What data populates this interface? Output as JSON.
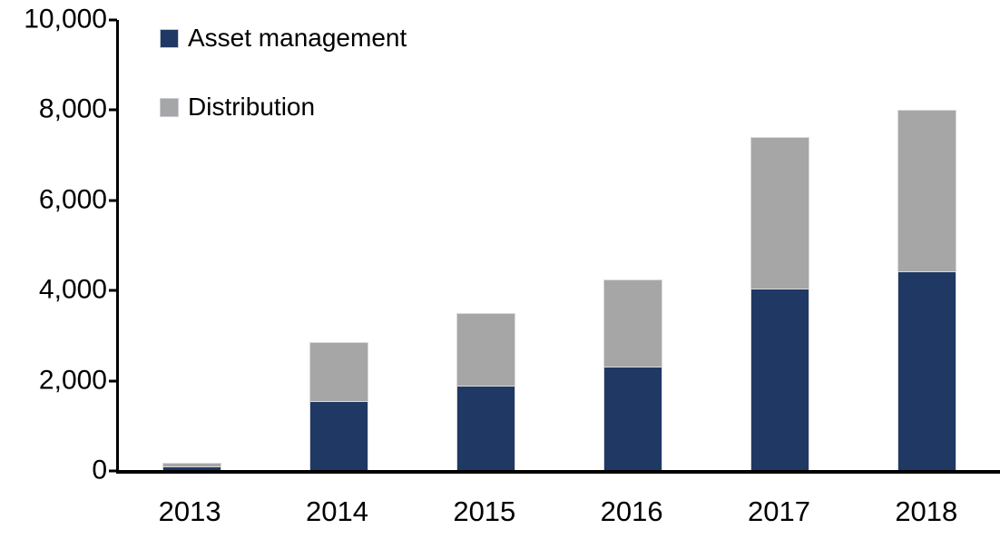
{
  "chart_data": {
    "type": "bar",
    "stacked": true,
    "title": "",
    "xlabel": "",
    "ylabel": "",
    "categories": [
      "2013",
      "2014",
      "2015",
      "2016",
      "2017",
      "2018"
    ],
    "series": [
      {
        "name": "Asset management",
        "color": "#1f3864",
        "values": [
          100,
          1550,
          1900,
          2320,
          4050,
          4420
        ]
      },
      {
        "name": "Distribution",
        "color": "#a6a6a6",
        "values": [
          80,
          1310,
          1600,
          1930,
          3350,
          3580
        ]
      }
    ],
    "totals": [
      180,
      2860,
      3500,
      4250,
      7400,
      8000
    ],
    "ylim": [
      0,
      10000
    ],
    "y_tick_values": [
      0,
      2000,
      4000,
      6000,
      8000,
      10000
    ],
    "y_tick_labels": [
      "0",
      "2,000",
      "4,000",
      "6,000",
      "8,000",
      "10,000"
    ],
    "grid": false,
    "legend_position": "top-left",
    "axis_color": "#000000",
    "background_color": "#ffffff"
  }
}
